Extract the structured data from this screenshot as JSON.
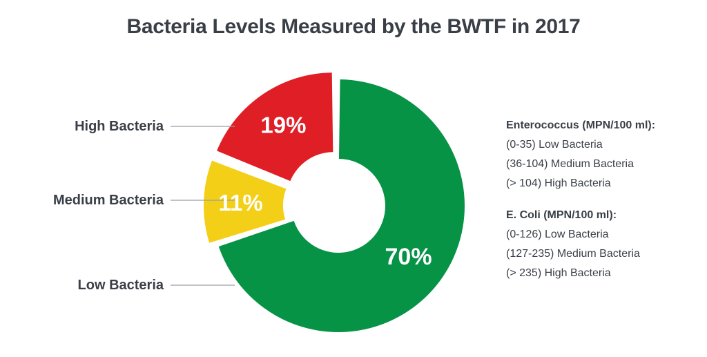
{
  "title": "Bacteria Levels Measured by the BWTF in 2017",
  "chart_data": {
    "type": "pie",
    "title": "Bacteria Levels Measured by the BWTF in 2017",
    "donut": true,
    "slices": [
      {
        "label": "High Bacteria",
        "value": 19,
        "value_label": "19%",
        "color": "#e01e26"
      },
      {
        "label": "Medium Bacteria",
        "value": 11,
        "value_label": "11%",
        "color": "#f4cf17"
      },
      {
        "label": "Low Bacteria",
        "value": 70,
        "value_label": "70%",
        "color": "#079346"
      }
    ]
  },
  "legend": {
    "groups": [
      {
        "heading": "Enterococcus (MPN/100 ml):",
        "lines": [
          "(0-35) Low Bacteria",
          "(36-104) Medium Bacteria",
          "(> 104) High Bacteria"
        ]
      },
      {
        "heading": "E. Coli (MPN/100 ml):",
        "lines": [
          "(0-126) Low Bacteria",
          "(127-235) Medium Bacteria",
          "(> 235) High Bacteria"
        ]
      }
    ]
  }
}
